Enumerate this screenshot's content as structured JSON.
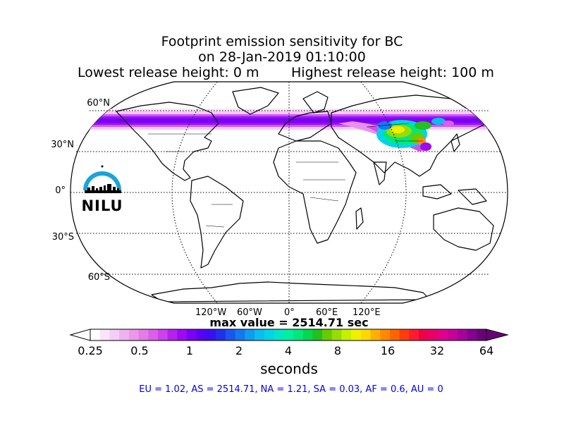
{
  "title": {
    "line1": "Footprint emission sensitivity for BC",
    "line2": "on 28-Jan-2019 01:10:00",
    "release_low": "Lowest release height: 0 m",
    "release_high": "Highest release height: 100 m"
  },
  "map": {
    "lat_labels": [
      "60°N",
      "30°N",
      "0°",
      "30°S",
      "60°S"
    ],
    "lon_labels": [
      "120°W",
      "60°W",
      "0°",
      "60°E",
      "120°E"
    ]
  },
  "logo": {
    "text": "NILU",
    "color": "#1aa3d9"
  },
  "max_value": "max value = 2514.71 sec",
  "colorbar": {
    "ticks": [
      "0.25",
      "0.5",
      "1",
      "2",
      "4",
      "8",
      "16",
      "32",
      "64"
    ],
    "unit": "seconds",
    "colors": [
      "#ffffff",
      "#fbe4fb",
      "#f6cdf6",
      "#f0b2f0",
      "#eb98eb",
      "#e37ce7",
      "#dc5fe9",
      "#cd40ec",
      "#b71ff0",
      "#9a0af3",
      "#7a00f5",
      "#5a00f4",
      "#3a10f0",
      "#2230ec",
      "#1a55ee",
      "#1578f0",
      "#0f9cf2",
      "#0abcf0",
      "#00d4e8",
      "#00e6c8",
      "#00f0a0",
      "#00e87a",
      "#00d850",
      "#22c020",
      "#66cc00",
      "#99dd00",
      "#c8ee00",
      "#f0f000",
      "#ffd800",
      "#ffb000",
      "#ff8a00",
      "#ff6400",
      "#ff3c10",
      "#ff1a30",
      "#f0004a",
      "#e8006a",
      "#e00090",
      "#c80098",
      "#a8009a",
      "#860090",
      "#6a0078"
    ]
  },
  "summary": "EU = 1.02,  AS = 2514.71,  NA = 1.21,  SA = 0.03,  AF = 0.6,  AU = 0"
}
